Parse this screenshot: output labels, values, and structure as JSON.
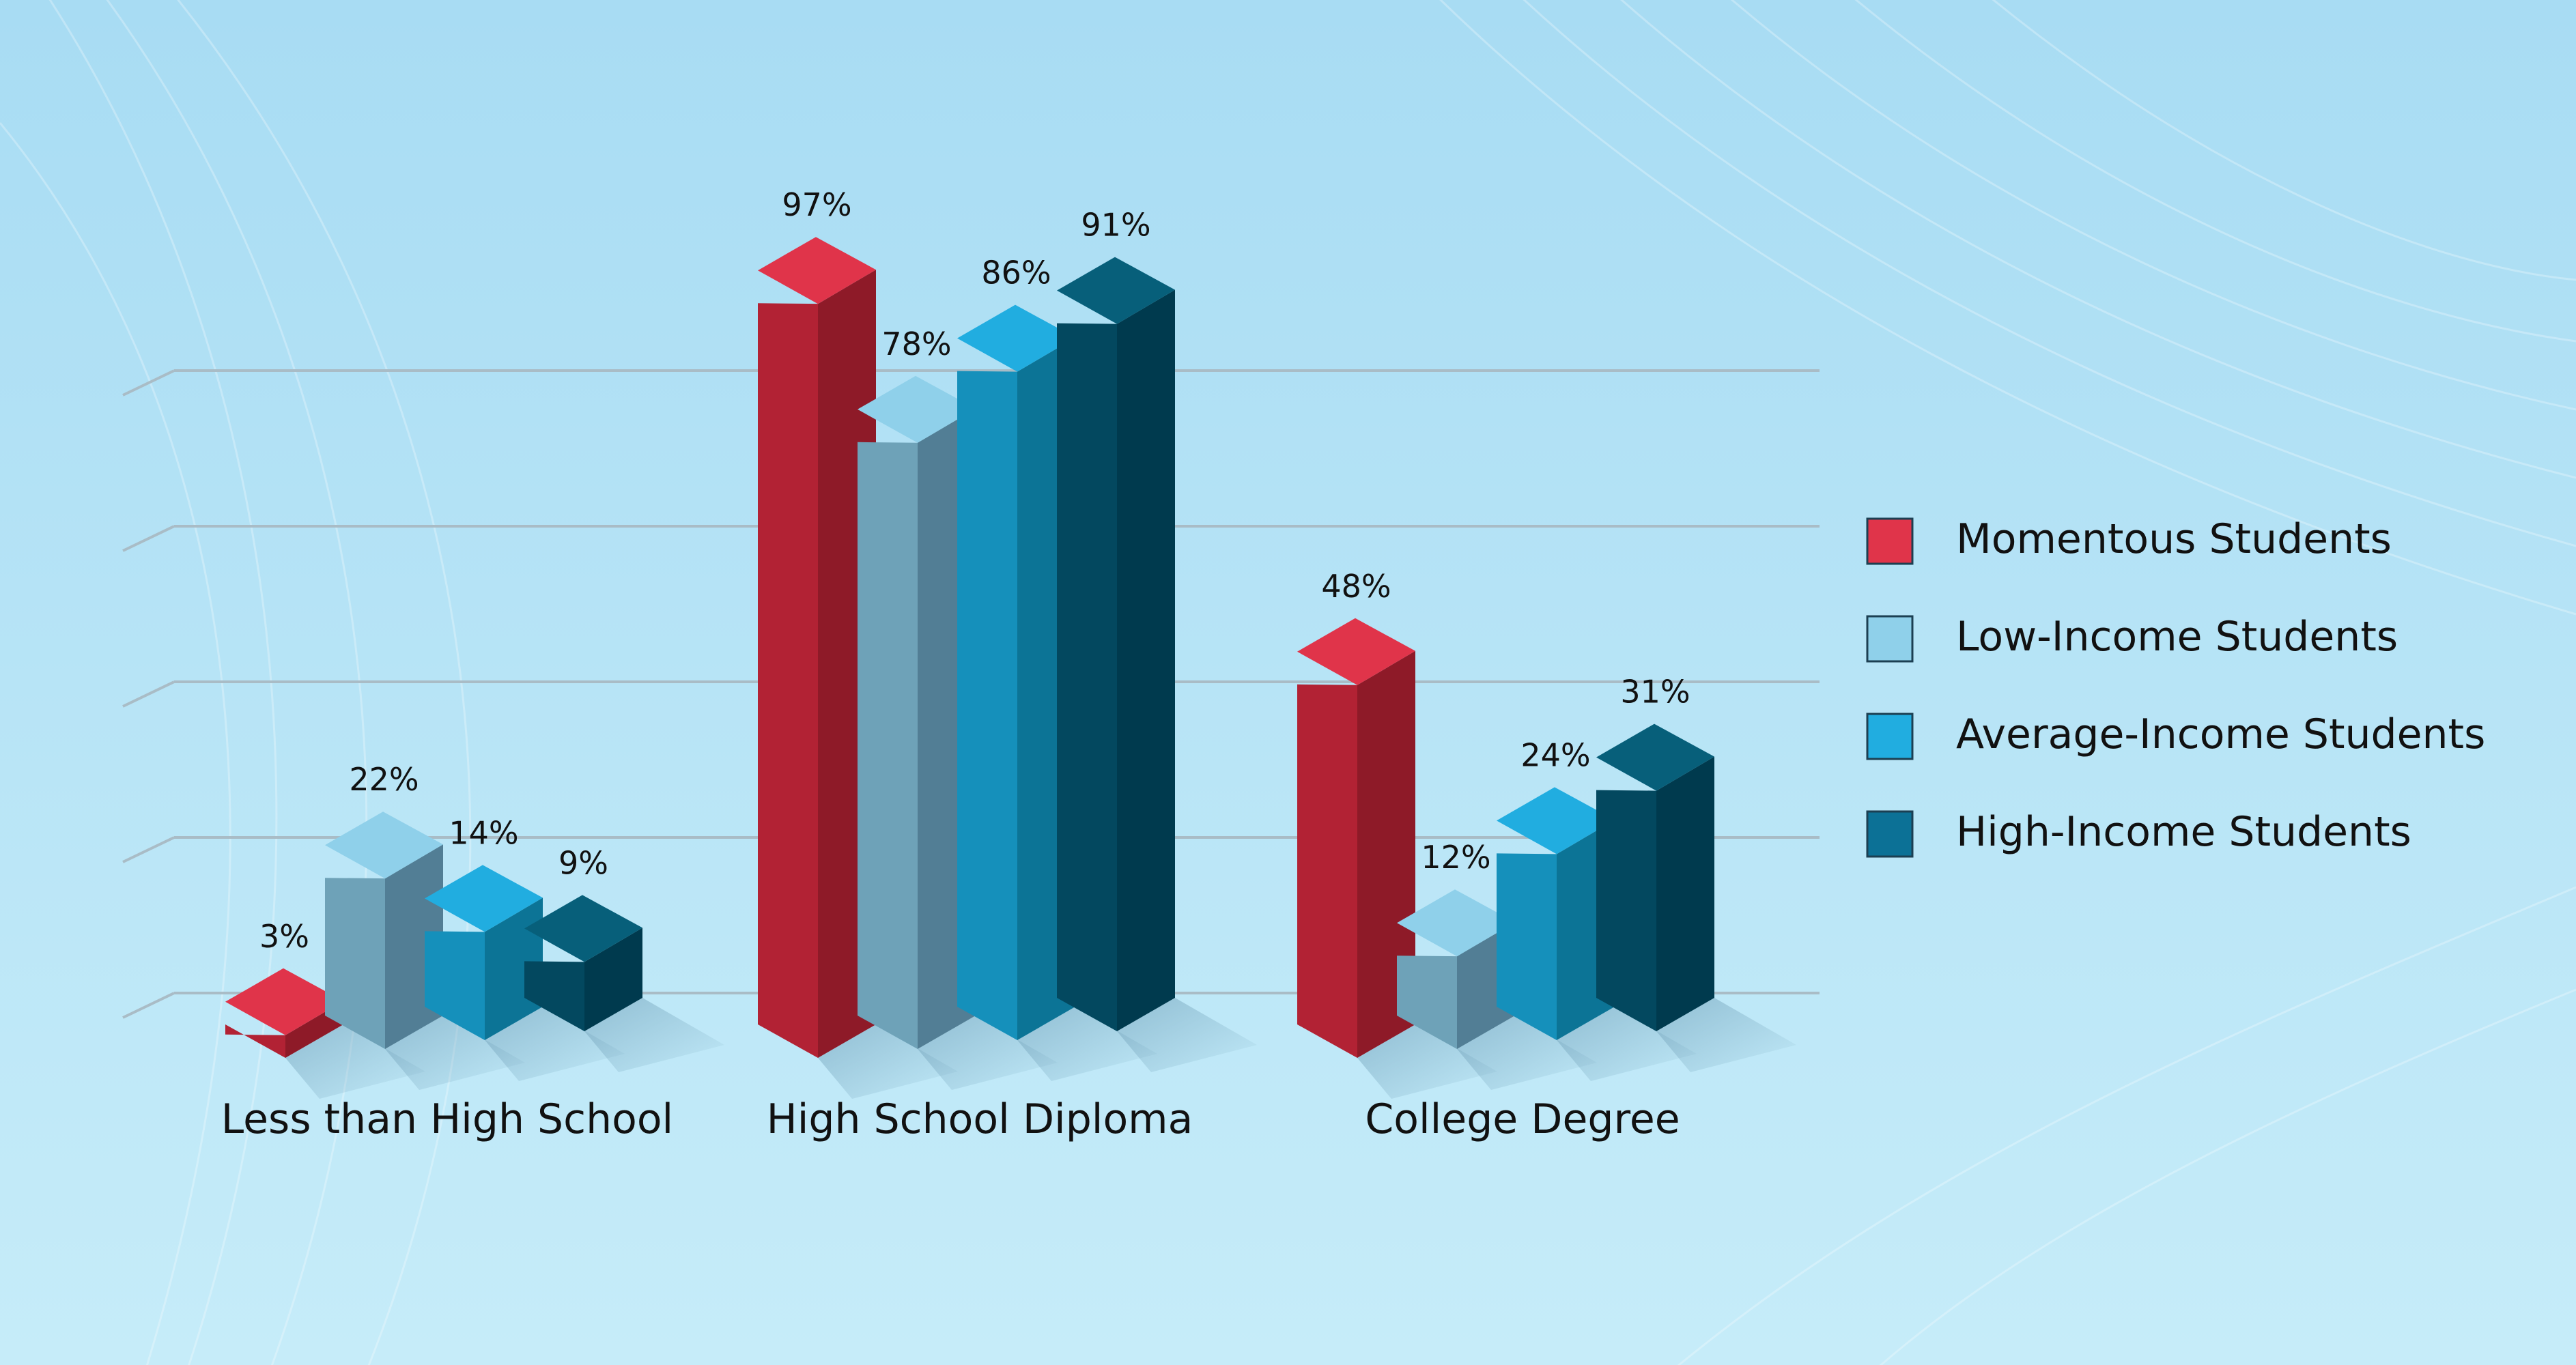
{
  "chart_data": {
    "type": "bar",
    "categories": [
      "Less than High School",
      "High School Diploma",
      "College Degree"
    ],
    "series": [
      {
        "name": "Momentous Students",
        "values": [
          3,
          97,
          48
        ]
      },
      {
        "name": "Low-Income Students",
        "values": [
          22,
          78,
          12
        ]
      },
      {
        "name": "Average-Income Students",
        "values": [
          14,
          86,
          24
        ]
      },
      {
        "name": "High-Income Students",
        "values": [
          9,
          91,
          31
        ]
      }
    ],
    "data_labels": [
      [
        "3%",
        "97%",
        "48%"
      ],
      [
        "22%",
        "78%",
        "12%"
      ],
      [
        "14%",
        "86%",
        "24%"
      ],
      [
        "9%",
        "91%",
        "31%"
      ]
    ],
    "title": "",
    "xlabel": "",
    "ylabel": "",
    "ylim": [
      0,
      100
    ],
    "grid": true,
    "legend_position": "right",
    "style": "3d-isometric"
  },
  "colors": {
    "background_top": "#a8dcf3",
    "background_bottom": "#c6ecf9",
    "gridline": "#a9bcc6",
    "series": [
      {
        "front": "#b22234",
        "side": "#8e1a28",
        "top": "#e0344a",
        "legend": "#e0344a"
      },
      {
        "front": "#6ea2b8",
        "side": "#527e95",
        "top": "#8fd0ea",
        "legend": "#8fd0ea"
      },
      {
        "front": "#1590bb",
        "side": "#0c7496",
        "top": "#21ade0",
        "legend": "#21ade0"
      },
      {
        "front": "#03485f",
        "side": "#003a4e",
        "top": "#075f7a",
        "legend": "#0c7196"
      }
    ]
  }
}
